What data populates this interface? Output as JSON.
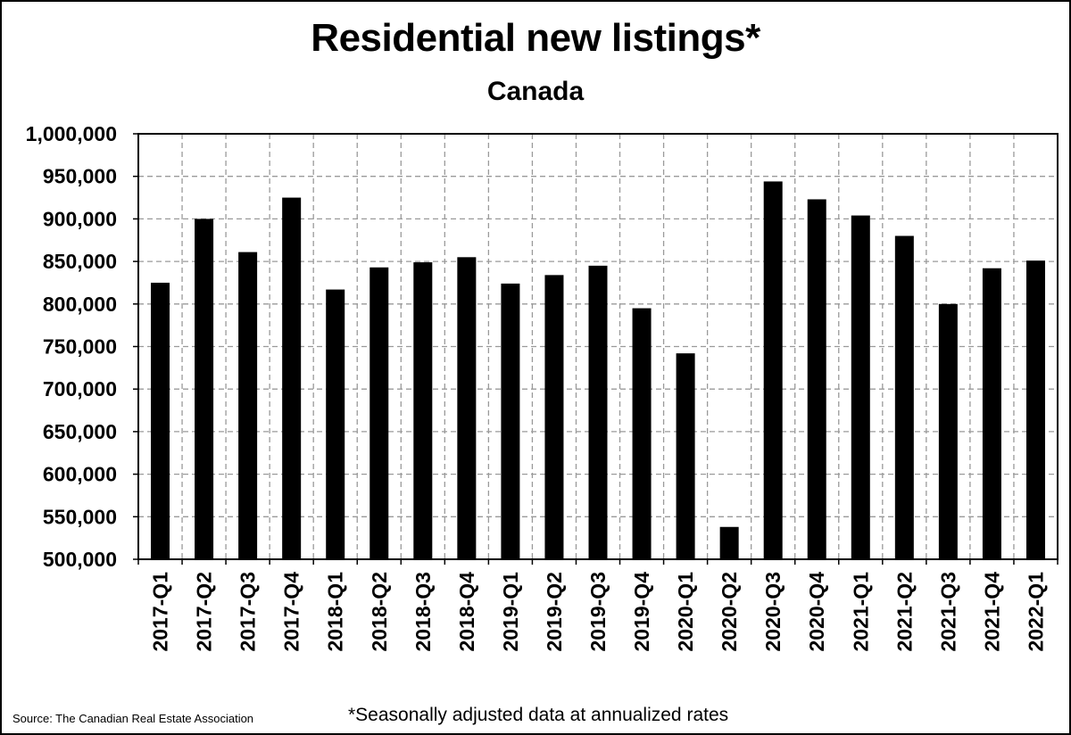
{
  "chart_data": {
    "type": "bar",
    "title": "Residential new listings*",
    "subtitle": "Canada",
    "xlabel": "",
    "ylabel": "",
    "ylim": [
      500000,
      1000000
    ],
    "yticks": [
      500000,
      550000,
      600000,
      650000,
      700000,
      750000,
      800000,
      850000,
      900000,
      950000,
      1000000
    ],
    "ytick_labels": [
      "500,000",
      "550,000",
      "600,000",
      "650,000",
      "700,000",
      "750,000",
      "800,000",
      "850,000",
      "900,000",
      "950,000",
      "1,000,000"
    ],
    "grid": true,
    "bar_color": "#000000",
    "categories": [
      "2017-Q1",
      "2017-Q2",
      "2017-Q3",
      "2017-Q4",
      "2018-Q1",
      "2018-Q2",
      "2018-Q3",
      "2018-Q4",
      "2019-Q1",
      "2019-Q2",
      "2019-Q3",
      "2019-Q4",
      "2020-Q1",
      "2020-Q2",
      "2020-Q3",
      "2020-Q4",
      "2021-Q1",
      "2021-Q2",
      "2021-Q3",
      "2021-Q4",
      "2022-Q1"
    ],
    "values": [
      825000,
      900000,
      861000,
      925000,
      817000,
      843000,
      849000,
      855000,
      824000,
      834000,
      845000,
      795000,
      742000,
      538000,
      944000,
      923000,
      904000,
      880000,
      800000,
      842000,
      851000
    ]
  },
  "footer": {
    "source": "Source: The Canadian Real Estate Association",
    "note": "*Seasonally adjusted data at annualized rates"
  }
}
